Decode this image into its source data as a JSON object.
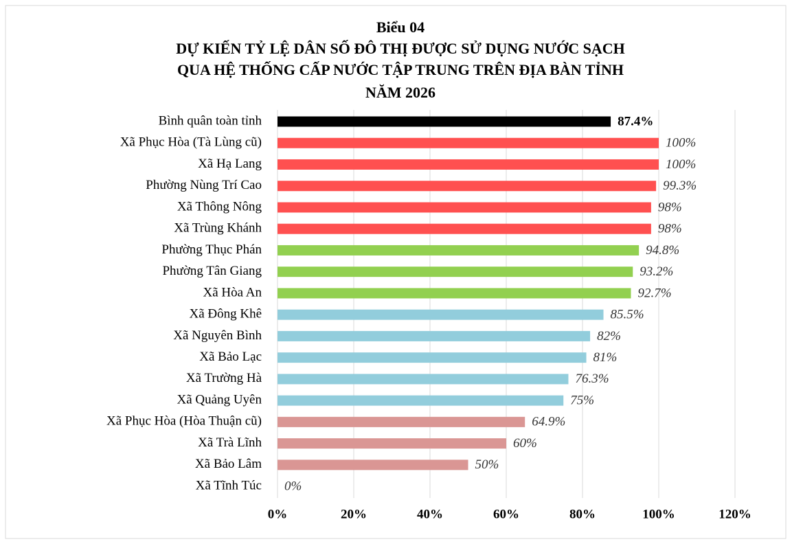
{
  "chart_data": {
    "type": "barh",
    "title": [
      "Biểu 04",
      "DỰ KIẾN TỶ LỆ DÂN SỐ ĐÔ THỊ ĐƯỢC SỬ DỤNG NƯỚC SẠCH",
      "QUA HỆ THỐNG CẤP NƯỚC TẬP TRUNG TRÊN ĐỊA BÀN TỈNH",
      "NĂM 2026"
    ],
    "categories": [
      "Bình quân toàn tỉnh",
      "Xã Phục Hòa (Tà Lùng cũ)",
      "Xã Hạ Lang",
      "Phường Nùng Trí Cao",
      "Xã Thông Nông",
      "Xã Trùng Khánh",
      "Phường Thục Phán",
      "Phường Tân Giang",
      "Xã Hòa An",
      "Xã Đông Khê",
      "Xã Nguyên Bình",
      "Xã Bảo Lạc",
      "Xã Trường Hà",
      "Xã Quảng Uyên",
      "Xã Phục Hòa (Hòa Thuận cũ)",
      "Xã Trà Lĩnh",
      "Xã Bảo Lâm",
      "Xã Tĩnh Túc"
    ],
    "values": [
      87.4,
      100,
      100,
      99.3,
      98,
      98,
      94.8,
      93.2,
      92.7,
      85.5,
      82,
      81,
      76.3,
      75,
      64.9,
      60,
      50,
      0
    ],
    "value_labels": [
      "87.4%",
      "100%",
      "100%",
      "99.3%",
      "98%",
      "98%",
      "94.8%",
      "93.2%",
      "92.7%",
      "85.5%",
      "82%",
      "81%",
      "76.3%",
      "75%",
      "64.9%",
      "60%",
      "50%",
      "0%"
    ],
    "colors": [
      "#000000",
      "#ff5050",
      "#ff5050",
      "#ff5050",
      "#ff5050",
      "#ff5050",
      "#92d050",
      "#92d050",
      "#92d050",
      "#92cddc",
      "#92cddc",
      "#92cddc",
      "#92cddc",
      "#92cddc",
      "#da9694",
      "#da9694",
      "#da9694",
      "#da9694"
    ],
    "xlim": [
      0,
      120
    ],
    "xticks": [
      {
        "value": 0,
        "label": "0%"
      },
      {
        "value": 20,
        "label": "20%"
      },
      {
        "value": 40,
        "label": "40%"
      },
      {
        "value": 60,
        "label": "60%"
      },
      {
        "value": 80,
        "label": "80%"
      },
      {
        "value": 100,
        "label": "100%"
      },
      {
        "value": 120,
        "label": "120%"
      }
    ],
    "grid": true
  }
}
